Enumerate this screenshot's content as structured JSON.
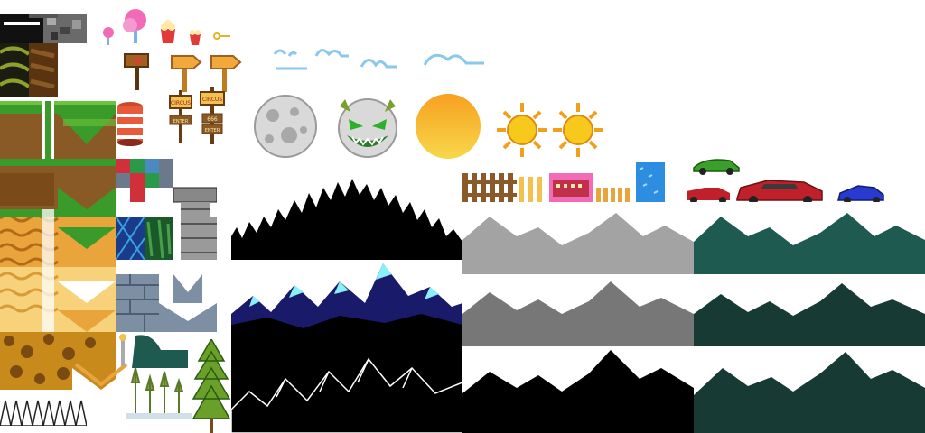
{
  "sheet": {
    "signs": {
      "circus_1": "CIRCUS",
      "circus_2": "CIRCUS",
      "enter_1": "ENTER",
      "enter_2": "ENTER",
      "number": "666"
    },
    "colors": {
      "grass": "#3a9a2a",
      "grass_light": "#6cc43c",
      "dirt": "#8a5a26",
      "dirt_dark": "#5a3410",
      "sand": "#e9a43b",
      "sand_light": "#f7d27a",
      "stone": "#7d8fa3",
      "stone_dark": "#4d5e72",
      "gray_mtn": "#a3a3a3",
      "gray_mtn_dark": "#777777",
      "teal_mtn": "#1f5a50",
      "teal_mtn_dark": "#173a34",
      "sun": "#f7b51c",
      "moon": "#d9d9d9",
      "fence": "#8b5a2b",
      "water": "#2d8de0",
      "black": "#000000"
    },
    "icons": [
      "cotton-candy-icon",
      "popcorn-icon",
      "key-icon",
      "arrow-sign-icon",
      "circus-sign-icon",
      "barrel-icon",
      "moon-icon",
      "monster-moon-icon",
      "sun-icon",
      "cloud-icon",
      "car-icon",
      "tree-icon"
    ]
  }
}
